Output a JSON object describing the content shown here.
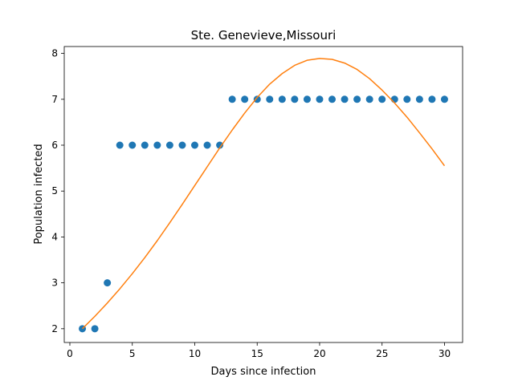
{
  "chart_data": {
    "type": "scatter",
    "title": "Ste. Genevieve,Missouri",
    "xlabel": "Days since infection",
    "ylabel": "Population infected",
    "xlim": [
      -0.45,
      31.45
    ],
    "ylim": [
      1.7,
      8.15
    ],
    "xticks": [
      0,
      5,
      10,
      15,
      20,
      25,
      30
    ],
    "yticks": [
      2,
      3,
      4,
      5,
      6,
      7,
      8
    ],
    "grid": false,
    "series": [
      {
        "kind": "scatter",
        "color": "#1f77b4",
        "x": [
          1,
          2,
          3,
          4,
          5,
          6,
          7,
          8,
          9,
          10,
          11,
          12,
          13,
          14,
          15,
          16,
          17,
          18,
          19,
          20,
          21,
          22,
          23,
          24,
          25,
          26,
          27,
          28,
          29,
          30
        ],
        "y": [
          2,
          2,
          3,
          6,
          6,
          6,
          6,
          6,
          6,
          6,
          6,
          6,
          7,
          7,
          7,
          7,
          7,
          7,
          7,
          7,
          7,
          7,
          7,
          7,
          7,
          7,
          7,
          7,
          7,
          7
        ]
      },
      {
        "kind": "line",
        "color": "#ff7f0e",
        "x": [
          1,
          2,
          3,
          4,
          5,
          6,
          7,
          8,
          9,
          10,
          11,
          12,
          13,
          14,
          15,
          16,
          17,
          18,
          19,
          20,
          21,
          22,
          23,
          24,
          25,
          26,
          27,
          28,
          29,
          30
        ],
        "y": [
          2.0,
          2.27,
          2.56,
          2.87,
          3.2,
          3.55,
          3.92,
          4.31,
          4.71,
          5.12,
          5.53,
          5.94,
          6.33,
          6.7,
          7.04,
          7.33,
          7.56,
          7.74,
          7.85,
          7.89,
          7.87,
          7.79,
          7.65,
          7.45,
          7.2,
          6.92,
          6.61,
          6.27,
          5.92,
          5.55
        ]
      }
    ]
  }
}
